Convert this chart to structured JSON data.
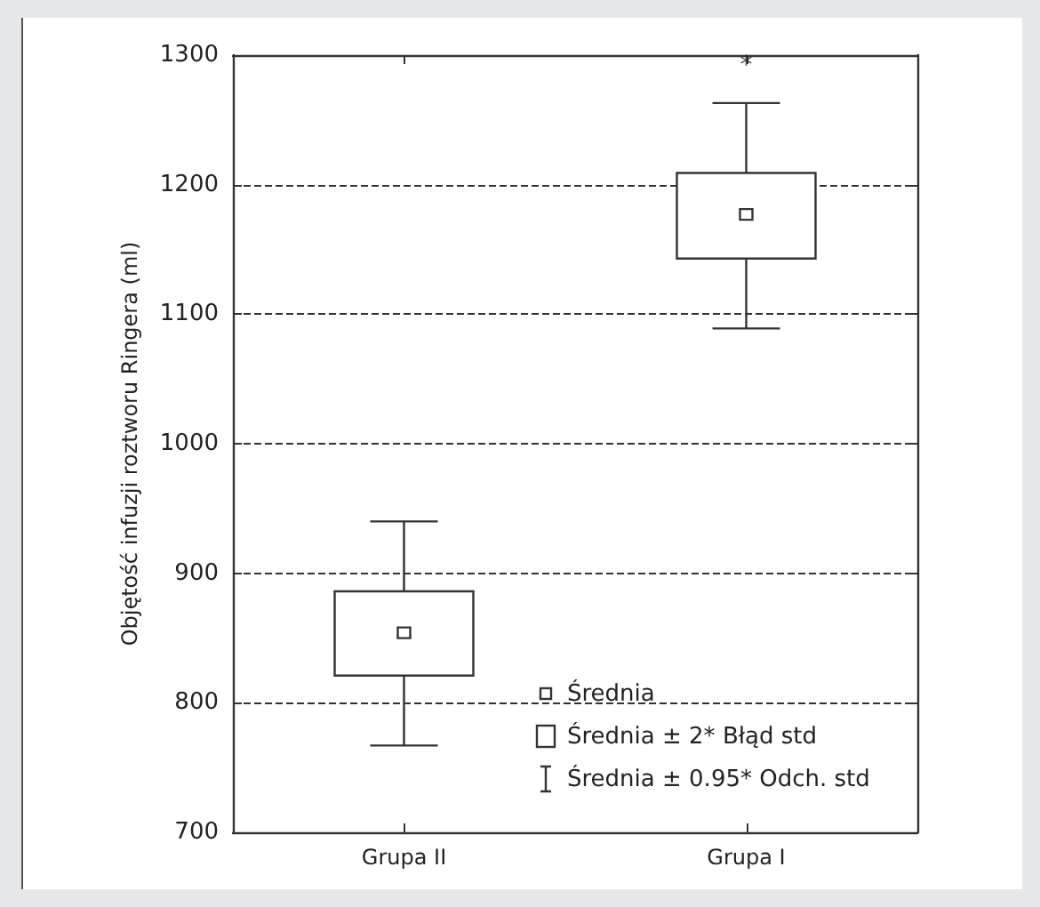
{
  "chart_data": {
    "type": "box",
    "ylabel": "Objętość infuzji roztworu Ringera (ml)",
    "categories": [
      "Grupa II",
      "Grupa I"
    ],
    "boxes": [
      {
        "low": 767,
        "q1": 821,
        "median": 854,
        "q3": 886,
        "high": 940
      },
      {
        "low": 1089,
        "q1": 1143,
        "median": 1177,
        "q3": 1209,
        "high": 1263
      }
    ],
    "ylim": [
      700,
      1300
    ],
    "yticks": [
      700,
      800,
      900,
      1000,
      1100,
      1200,
      1300
    ],
    "grid": "y",
    "annotations": [
      "*",
      "Średnia",
      "Średnia ± 2* Błąd std",
      "Średnia ± 0.95* Odch. std"
    ]
  }
}
